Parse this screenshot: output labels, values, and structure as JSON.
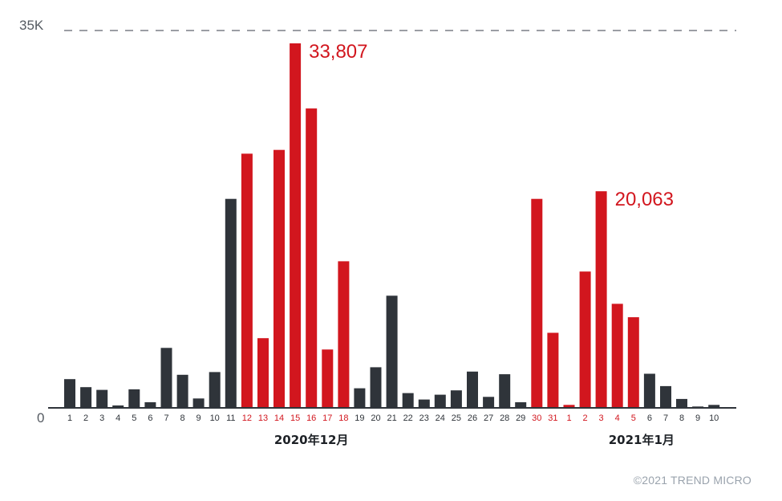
{
  "chart_data": {
    "type": "bar",
    "ylim": [
      0,
      35000
    ],
    "y_tick_labels": [
      "35K",
      "0"
    ],
    "grid": "dashed line at 35K only",
    "colors": {
      "normal": "#2f343a",
      "highlight": "#d2161e",
      "axis": "#2f343a",
      "dashed_line": "#7a7f85"
    },
    "groups": [
      {
        "label": "2020年12月",
        "start_index": 0,
        "count": 31
      },
      {
        "label": "2021年1月",
        "start_index": 31,
        "count": 10
      }
    ],
    "categories": [
      "1",
      "2",
      "3",
      "4",
      "5",
      "6",
      "7",
      "8",
      "9",
      "10",
      "11",
      "12",
      "13",
      "14",
      "15",
      "16",
      "17",
      "18",
      "19",
      "20",
      "21",
      "22",
      "23",
      "24",
      "25",
      "26",
      "27",
      "28",
      "29",
      "30",
      "31",
      "1",
      "2",
      "3",
      "4",
      "5",
      "6",
      "7",
      "8",
      "9",
      "10"
    ],
    "values": [
      2600,
      1850,
      1600,
      150,
      1650,
      450,
      5500,
      3000,
      800,
      3250,
      19350,
      23550,
      6400,
      23900,
      33807,
      27750,
      5350,
      13550,
      1750,
      3700,
      10350,
      1300,
      700,
      1150,
      1550,
      3300,
      950,
      3050,
      450,
      19350,
      6900,
      200,
      12600,
      20063,
      9600,
      8350,
      3100,
      1950,
      750,
      50,
      200
    ],
    "highlighted": [
      false,
      false,
      false,
      false,
      false,
      false,
      false,
      false,
      false,
      false,
      false,
      true,
      true,
      true,
      true,
      true,
      true,
      true,
      false,
      false,
      false,
      false,
      false,
      false,
      false,
      false,
      false,
      false,
      false,
      true,
      true,
      true,
      true,
      true,
      true,
      true,
      false,
      false,
      false,
      false,
      false
    ],
    "annotations": [
      {
        "index": 14,
        "text": "33,807"
      },
      {
        "index": 33,
        "text": "20,063"
      }
    ]
  },
  "credit": "©2021 TREND MICRO"
}
